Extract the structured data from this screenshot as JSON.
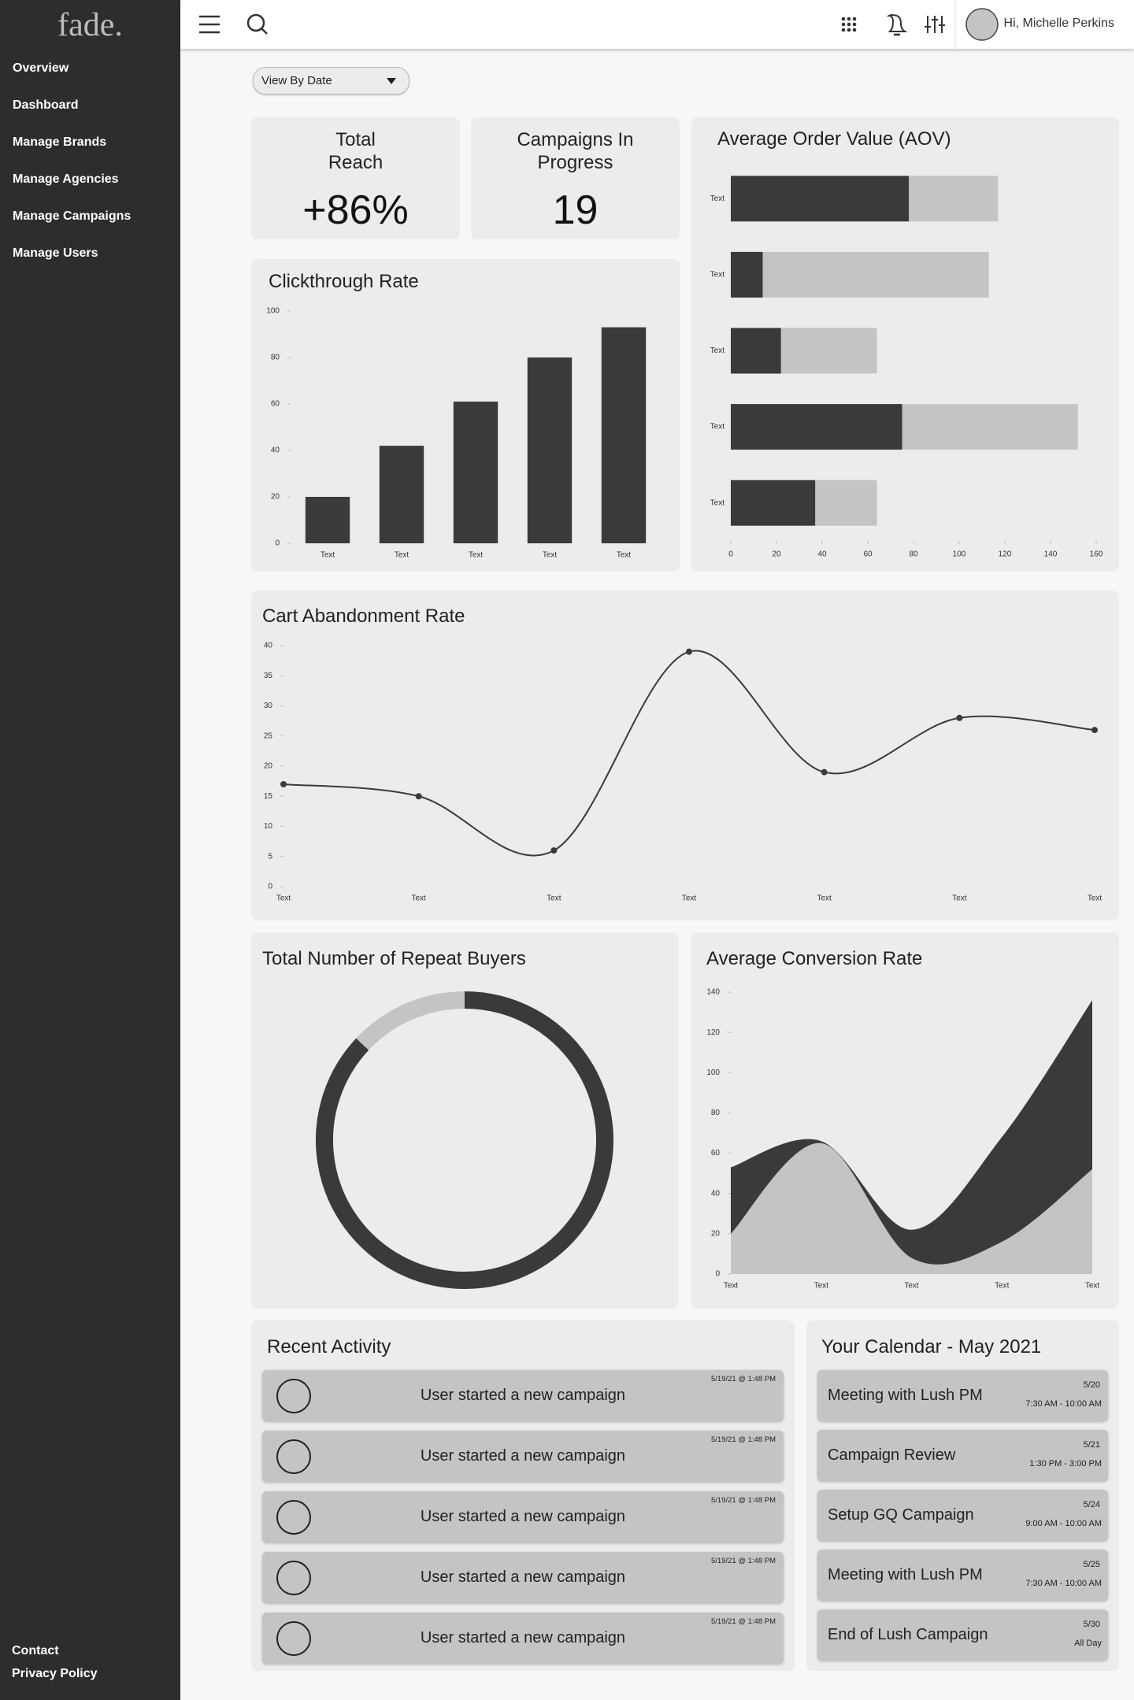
{
  "sidebar": {
    "logo": "fade.",
    "nav": [
      "Overview",
      "Dashboard",
      "Manage Brands",
      "Manage Agencies",
      "Manage Campaigns",
      "Manage Users"
    ],
    "footer": [
      "Contact",
      "Privacy Policy"
    ]
  },
  "header": {
    "greeting": "Hi, Michelle Perkins"
  },
  "filter": {
    "label": "View By Date"
  },
  "stats": [
    {
      "title": "Total Reach",
      "value": "+86%"
    },
    {
      "title": "Campaigns In Progress",
      "value": 19
    }
  ],
  "chart_data": [
    {
      "type": "bar",
      "title": "Clickthrough Rate",
      "categories": [
        "Text",
        "Text",
        "Text",
        "Text",
        "Text"
      ],
      "values": [
        20,
        42,
        61,
        80,
        93
      ],
      "color": "#3a3a3a",
      "ylim": [
        0,
        100
      ],
      "yticks": [
        0,
        20,
        40,
        60,
        80,
        100
      ]
    },
    {
      "type": "hbar",
      "title": "Average Order Value (AOV)",
      "stacked": true,
      "categories": [
        "Text",
        "Text",
        "Text",
        "Text",
        "Text"
      ],
      "series": [
        {
          "color": "#3a3a3a",
          "values": [
            78,
            14,
            22,
            75,
            37
          ]
        },
        {
          "color": "#c4c4c4",
          "values": [
            39,
            99,
            42,
            77,
            27
          ]
        }
      ],
      "xlim": [
        0,
        160
      ],
      "xticks": [
        0,
        20,
        40,
        60,
        80,
        100,
        120,
        140,
        160
      ]
    },
    {
      "type": "line",
      "title": "Cart Abandonment Rate",
      "categories": [
        "Text",
        "Text",
        "Text",
        "Text",
        "Text",
        "Text",
        "Text"
      ],
      "values": [
        17,
        15,
        6,
        39,
        19,
        28,
        26
      ],
      "color": "#3a3a3a",
      "ylim": [
        0,
        40
      ],
      "yticks": [
        0,
        5,
        10,
        15,
        20,
        25,
        30,
        35,
        40
      ]
    },
    {
      "type": "donut",
      "title": "Total Number of Repeat Buyers",
      "values": [
        87,
        13
      ],
      "colors": [
        "#3a3a3a",
        "#c4c4c4"
      ]
    },
    {
      "type": "area",
      "title": "Average Conversion Rate",
      "stacked": true,
      "categories": [
        "Text",
        "Text",
        "Text",
        "Text",
        "Text"
      ],
      "series": [
        {
          "color": "#c4c4c4",
          "values": [
            20,
            65,
            8,
            16,
            52
          ]
        },
        {
          "color": "#3a3a3a",
          "values": [
            33,
            1,
            14,
            52,
            84
          ]
        }
      ],
      "ylim": [
        0,
        140
      ],
      "yticks": [
        0,
        20,
        40,
        60,
        80,
        100,
        120,
        140
      ]
    }
  ],
  "activity": {
    "title": "Recent Activity",
    "items": [
      {
        "text": "User started a new campaign",
        "time": "5/19/21 @ 1:48 PM"
      },
      {
        "text": "User started a new campaign",
        "time": "5/19/21 @ 1:48 PM"
      },
      {
        "text": "User started a new campaign",
        "time": "5/19/21 @ 1:48 PM"
      },
      {
        "text": "User started a new campaign",
        "time": "5/19/21 @ 1:48 PM"
      },
      {
        "text": "User started a new campaign",
        "time": "5/19/21 @ 1:48 PM"
      }
    ]
  },
  "calendar": {
    "title": "Your Calendar - May 2021",
    "events": [
      {
        "title": "Meeting with Lush PM",
        "date": "5/20",
        "time": "7:30 AM - 10:00 AM"
      },
      {
        "title": "Campaign Review",
        "date": "5/21",
        "time": "1:30 PM - 3:00 PM"
      },
      {
        "title": "Setup GQ Campaign",
        "date": "5/24",
        "time": "9:00 AM - 10:00 AM"
      },
      {
        "title": "Meeting with Lush PM",
        "date": "5/25",
        "time": "7:30 AM - 10:00 AM"
      },
      {
        "title": "End of Lush Campaign",
        "date": "5/30",
        "time": "All Day"
      }
    ]
  }
}
